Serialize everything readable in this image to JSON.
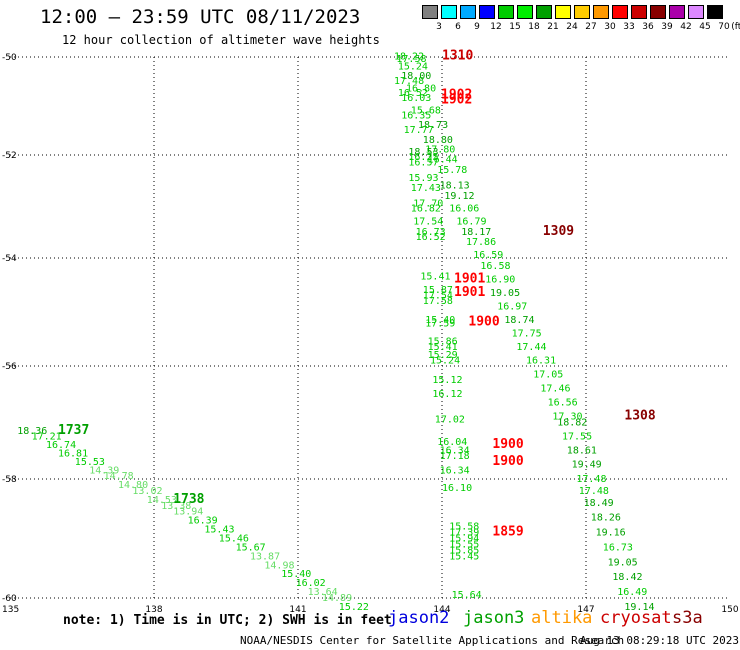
{
  "title": "12:00 — 23:59 UTC 08/11/2023",
  "subtitle": "12 hour collection of altimeter wave heights",
  "colorbar": {
    "labels": [
      "3",
      "6",
      "9",
      "12",
      "15",
      "18",
      "21",
      "24",
      "27",
      "30",
      "33",
      "36",
      "39",
      "42",
      "45",
      "70"
    ],
    "unit": "(ft)",
    "colors": [
      "#808080",
      "#00ffff",
      "#00aaff",
      "#0000ff",
      "#00cc00",
      "#00ee00",
      "#00a000",
      "#ffff00",
      "#ffcc00",
      "#ff9900",
      "#ff0000",
      "#cc0000",
      "#880000",
      "#aa00aa",
      "#dd88ff",
      "#000000"
    ]
  },
  "axes": {
    "lon_ticks": [
      "135",
      "138",
      "141",
      "144",
      "147",
      "150"
    ],
    "lat_ticks": [
      "-50",
      "-52",
      "-54",
      "-56",
      "-58",
      "-60"
    ]
  },
  "note": "note: 1) Time is in UTC; 2) SWH is in feet",
  "satellites": [
    {
      "name": "jason2",
      "color": "#0000dd"
    },
    {
      "name": "jason3",
      "color": "#00a000"
    },
    {
      "name": "altika",
      "color": "#ff9900"
    },
    {
      "name": "cryosat",
      "color": "#cc0000"
    },
    {
      "name": "s3a",
      "color": "#880000"
    }
  ],
  "footer_left": "NOAA/NESDIS Center for Satellite Applications and Research",
  "footer_right": "Aug 13 08:29:18 UTC 2023",
  "times": [
    {
      "text": "1310",
      "color": "#cc0000",
      "lon": 144.0,
      "lat": -50.05
    },
    {
      "text": "1902",
      "color": "#ff0000",
      "lon": 143.98,
      "lat": -50.85
    },
    {
      "text": "1902",
      "color": "#ff0000",
      "lon": 143.98,
      "lat": -50.95
    },
    {
      "text": "1309",
      "color": "#880000",
      "lon": 146.1,
      "lat": -53.55
    },
    {
      "text": "1901",
      "color": "#ff0000",
      "lon": 144.25,
      "lat": -54.45
    },
    {
      "text": "1901",
      "color": "#ff0000",
      "lon": 144.25,
      "lat": -54.7
    },
    {
      "text": "1900",
      "color": "#ff0000",
      "lon": 144.55,
      "lat": -55.25
    },
    {
      "text": "1308",
      "color": "#880000",
      "lon": 147.8,
      "lat": -56.95
    },
    {
      "text": "1900",
      "color": "#ff0000",
      "lon": 145.05,
      "lat": -57.45
    },
    {
      "text": "1900",
      "color": "#ff0000",
      "lon": 145.05,
      "lat": -57.75
    },
    {
      "text": "1859",
      "color": "#ff0000",
      "lon": 145.05,
      "lat": -58.95
    },
    {
      "text": "1737",
      "color": "#00a000",
      "lon": 136.0,
      "lat": -57.2
    },
    {
      "text": "1738",
      "color": "#00a000",
      "lon": 138.4,
      "lat": -58.4
    }
  ],
  "obs": [
    {
      "v": "18.22",
      "lon": 143.0,
      "lat": -50.05,
      "c": "#00cc00"
    },
    {
      "v": "17.58",
      "lon": 143.05,
      "lat": -50.1,
      "c": "#00cc00"
    },
    {
      "v": "15.24",
      "lon": 143.08,
      "lat": -50.25,
      "c": "#00cc00"
    },
    {
      "v": "18.00",
      "lon": 143.15,
      "lat": -50.45,
      "c": "#00a000"
    },
    {
      "v": "17.48",
      "lon": 143.0,
      "lat": -50.55,
      "c": "#00cc00"
    },
    {
      "v": "16.80",
      "lon": 143.25,
      "lat": -50.7,
      "c": "#00cc00"
    },
    {
      "v": "16.52",
      "lon": 143.08,
      "lat": -50.8,
      "c": "#00cc00"
    },
    {
      "v": "16.03",
      "lon": 143.15,
      "lat": -50.9,
      "c": "#00cc00"
    },
    {
      "v": "15.68",
      "lon": 143.35,
      "lat": -51.15,
      "c": "#00cc00"
    },
    {
      "v": "16.35",
      "lon": 143.15,
      "lat": -51.25,
      "c": "#00cc00"
    },
    {
      "v": "18.73",
      "lon": 143.5,
      "lat": -51.45,
      "c": "#00a000"
    },
    {
      "v": "17.77",
      "lon": 143.2,
      "lat": -51.55,
      "c": "#00cc00"
    },
    {
      "v": "18.80",
      "lon": 143.6,
      "lat": -51.75,
      "c": "#00a000"
    },
    {
      "v": "17.80",
      "lon": 143.65,
      "lat": -51.95,
      "c": "#00cc00"
    },
    {
      "v": "18.53",
      "lon": 143.3,
      "lat": -52.0,
      "c": "#00a000"
    },
    {
      "v": "16.44",
      "lon": 143.7,
      "lat": -52.15,
      "c": "#00cc00"
    },
    {
      "v": "16.25",
      "lon": 143.3,
      "lat": -52.1,
      "c": "#00cc00"
    },
    {
      "v": "16.57",
      "lon": 143.3,
      "lat": -52.2,
      "c": "#00cc00"
    },
    {
      "v": "15.78",
      "lon": 143.9,
      "lat": -52.35,
      "c": "#00cc00"
    },
    {
      "v": "15.93",
      "lon": 143.3,
      "lat": -52.5,
      "c": "#00cc00"
    },
    {
      "v": "18.13",
      "lon": 143.95,
      "lat": -52.65,
      "c": "#00a000"
    },
    {
      "v": "17.43",
      "lon": 143.35,
      "lat": -52.7,
      "c": "#00cc00"
    },
    {
      "v": "19.12",
      "lon": 144.05,
      "lat": -52.85,
      "c": "#00a000"
    },
    {
      "v": "17.70",
      "lon": 143.4,
      "lat": -53.0,
      "c": "#00cc00"
    },
    {
      "v": "16.82",
      "lon": 143.35,
      "lat": -53.1,
      "c": "#00cc00"
    },
    {
      "v": "16.06",
      "lon": 144.15,
      "lat": -53.1,
      "c": "#00cc00"
    },
    {
      "v": "16.79",
      "lon": 144.3,
      "lat": -53.35,
      "c": "#00cc00"
    },
    {
      "v": "17.54",
      "lon": 143.4,
      "lat": -53.35,
      "c": "#00cc00"
    },
    {
      "v": "18.17",
      "lon": 144.4,
      "lat": -53.55,
      "c": "#00a000"
    },
    {
      "v": "16.73",
      "lon": 143.45,
      "lat": -53.55,
      "c": "#00cc00"
    },
    {
      "v": "16.52",
      "lon": 143.45,
      "lat": -53.65,
      "c": "#00cc00"
    },
    {
      "v": "17.86",
      "lon": 144.5,
      "lat": -53.75,
      "c": "#00cc00"
    },
    {
      "v": "16.59",
      "lon": 144.65,
      "lat": -54.0,
      "c": "#00cc00"
    },
    {
      "v": "16.58",
      "lon": 144.8,
      "lat": -54.2,
      "c": "#00cc00"
    },
    {
      "v": "15.41",
      "lon": 143.55,
      "lat": -54.4,
      "c": "#00cc00"
    },
    {
      "v": "16.90",
      "lon": 144.9,
      "lat": -54.45,
      "c": "#00cc00"
    },
    {
      "v": "15.87",
      "lon": 143.6,
      "lat": -54.65,
      "c": "#00cc00"
    },
    {
      "v": "19.05",
      "lon": 145.0,
      "lat": -54.7,
      "c": "#00a000"
    },
    {
      "v": "17.54",
      "lon": 143.6,
      "lat": -54.75,
      "c": "#00cc00"
    },
    {
      "v": "17.58",
      "lon": 143.6,
      "lat": -54.85,
      "c": "#00cc00"
    },
    {
      "v": "16.97",
      "lon": 145.15,
      "lat": -54.95,
      "c": "#00cc00"
    },
    {
      "v": "18.74",
      "lon": 145.3,
      "lat": -55.2,
      "c": "#00a000"
    },
    {
      "v": "15.40",
      "lon": 143.65,
      "lat": -55.2,
      "c": "#00cc00"
    },
    {
      "v": "17.59",
      "lon": 143.65,
      "lat": -55.27,
      "c": "#00cc00"
    },
    {
      "v": "17.75",
      "lon": 145.45,
      "lat": -55.45,
      "c": "#00cc00"
    },
    {
      "v": "15.86",
      "lon": 143.7,
      "lat": -55.6,
      "c": "#00cc00"
    },
    {
      "v": "17.44",
      "lon": 145.55,
      "lat": -55.7,
      "c": "#00cc00"
    },
    {
      "v": "15.41",
      "lon": 143.7,
      "lat": -55.7,
      "c": "#00cc00"
    },
    {
      "v": "15.29",
      "lon": 143.7,
      "lat": -55.85,
      "c": "#00cc00"
    },
    {
      "v": "16.31",
      "lon": 145.75,
      "lat": -55.95,
      "c": "#00cc00"
    },
    {
      "v": "15.24",
      "lon": 143.75,
      "lat": -55.95,
      "c": "#00cc00"
    },
    {
      "v": "17.05",
      "lon": 145.9,
      "lat": -56.2,
      "c": "#00cc00"
    },
    {
      "v": "15.12",
      "lon": 143.8,
      "lat": -56.3,
      "c": "#00cc00"
    },
    {
      "v": "17.46",
      "lon": 146.05,
      "lat": -56.45,
      "c": "#00cc00"
    },
    {
      "v": "16.12",
      "lon": 143.8,
      "lat": -56.55,
      "c": "#00cc00"
    },
    {
      "v": "16.56",
      "lon": 146.2,
      "lat": -56.7,
      "c": "#00cc00"
    },
    {
      "v": "17.30",
      "lon": 146.3,
      "lat": -56.95,
      "c": "#00cc00"
    },
    {
      "v": "17.02",
      "lon": 143.85,
      "lat": -57.0,
      "c": "#00cc00"
    },
    {
      "v": "18.82",
      "lon": 146.4,
      "lat": -57.05,
      "c": "#00a000"
    },
    {
      "v": "17.55",
      "lon": 146.5,
      "lat": -57.3,
      "c": "#00cc00"
    },
    {
      "v": "16.04",
      "lon": 143.9,
      "lat": -57.4,
      "c": "#00cc00"
    },
    {
      "v": "18.61",
      "lon": 146.6,
      "lat": -57.55,
      "c": "#00a000"
    },
    {
      "v": "16.34",
      "lon": 143.95,
      "lat": -57.55,
      "c": "#00cc00"
    },
    {
      "v": "17.18",
      "lon": 143.95,
      "lat": -57.65,
      "c": "#00cc00"
    },
    {
      "v": "19.49",
      "lon": 146.7,
      "lat": -57.8,
      "c": "#00a000"
    },
    {
      "v": "16.34",
      "lon": 143.95,
      "lat": -57.9,
      "c": "#00cc00"
    },
    {
      "v": "17.48",
      "lon": 146.8,
      "lat": -58.05,
      "c": "#00cc00"
    },
    {
      "v": "16.10",
      "lon": 144.0,
      "lat": -58.2,
      "c": "#00cc00"
    },
    {
      "v": "17.48",
      "lon": 146.85,
      "lat": -58.25,
      "c": "#00cc00"
    },
    {
      "v": "18.49",
      "lon": 146.95,
      "lat": -58.45,
      "c": "#00a000"
    },
    {
      "v": "18.26",
      "lon": 147.1,
      "lat": -58.7,
      "c": "#00a000"
    },
    {
      "v": "15.58",
      "lon": 144.15,
      "lat": -58.85,
      "c": "#00cc00"
    },
    {
      "v": "17.39",
      "lon": 144.15,
      "lat": -58.95,
      "c": "#00cc00"
    },
    {
      "v": "19.16",
      "lon": 147.2,
      "lat": -58.95,
      "c": "#00a000"
    },
    {
      "v": "15.94",
      "lon": 144.15,
      "lat": -59.05,
      "c": "#00cc00"
    },
    {
      "v": "15.55",
      "lon": 144.15,
      "lat": -59.15,
      "c": "#00cc00"
    },
    {
      "v": "16.73",
      "lon": 147.35,
      "lat": -59.2,
      "c": "#00cc00"
    },
    {
      "v": "15.85",
      "lon": 144.15,
      "lat": -59.25,
      "c": "#00cc00"
    },
    {
      "v": "15.45",
      "lon": 144.15,
      "lat": -59.35,
      "c": "#00cc00"
    },
    {
      "v": "19.05",
      "lon": 147.45,
      "lat": -59.45,
      "c": "#00a000"
    },
    {
      "v": "18.42",
      "lon": 147.55,
      "lat": -59.7,
      "c": "#00a000"
    },
    {
      "v": "16.49",
      "lon": 147.65,
      "lat": -59.95,
      "c": "#00cc00"
    },
    {
      "v": "15.64",
      "lon": 144.2,
      "lat": -60.0,
      "c": "#00cc00"
    },
    {
      "v": "19.14",
      "lon": 147.8,
      "lat": -60.2,
      "c": "#00a000"
    },
    {
      "v": "18.36",
      "lon": 135.15,
      "lat": -57.2,
      "c": "#00a000"
    },
    {
      "v": "17.21",
      "lon": 135.45,
      "lat": -57.3,
      "c": "#00cc00"
    },
    {
      "v": "16.74",
      "lon": 135.75,
      "lat": -57.45,
      "c": "#00cc00"
    },
    {
      "v": "16.81",
      "lon": 136.0,
      "lat": -57.6,
      "c": "#00cc00"
    },
    {
      "v": "15.53",
      "lon": 136.35,
      "lat": -57.75,
      "c": "#00cc00"
    },
    {
      "v": "14.39",
      "lon": 136.65,
      "lat": -57.9,
      "c": "#66dd66"
    },
    {
      "v": "14.78",
      "lon": 136.95,
      "lat": -58.0,
      "c": "#66dd66"
    },
    {
      "v": "14.80",
      "lon": 137.25,
      "lat": -58.15,
      "c": "#66dd66"
    },
    {
      "v": "13.02",
      "lon": 137.55,
      "lat": -58.25,
      "c": "#66dd66"
    },
    {
      "v": "14.53",
      "lon": 137.85,
      "lat": -58.4,
      "c": "#66dd66"
    },
    {
      "v": "13.38",
      "lon": 138.15,
      "lat": -58.5,
      "c": "#66dd66"
    },
    {
      "v": "13.94",
      "lon": 138.4,
      "lat": -58.6,
      "c": "#66dd66"
    },
    {
      "v": "16.39",
      "lon": 138.7,
      "lat": -58.75,
      "c": "#00cc00"
    },
    {
      "v": "15.43",
      "lon": 139.05,
      "lat": -58.9,
      "c": "#00cc00"
    },
    {
      "v": "15.46",
      "lon": 139.35,
      "lat": -59.05,
      "c": "#00cc00"
    },
    {
      "v": "15.67",
      "lon": 139.7,
      "lat": -59.2,
      "c": "#00cc00"
    },
    {
      "v": "13.87",
      "lon": 140.0,
      "lat": -59.35,
      "c": "#66dd66"
    },
    {
      "v": "14.98",
      "lon": 140.3,
      "lat": -59.5,
      "c": "#66dd66"
    },
    {
      "v": "15.40",
      "lon": 140.65,
      "lat": -59.65,
      "c": "#00cc00"
    },
    {
      "v": "16.02",
      "lon": 140.95,
      "lat": -59.8,
      "c": "#00cc00"
    },
    {
      "v": "13.64",
      "lon": 141.2,
      "lat": -59.95,
      "c": "#66dd66"
    },
    {
      "v": "14.89",
      "lon": 141.5,
      "lat": -60.05,
      "c": "#66dd66"
    },
    {
      "v": "15.22",
      "lon": 141.85,
      "lat": -60.2,
      "c": "#00cc00"
    }
  ]
}
